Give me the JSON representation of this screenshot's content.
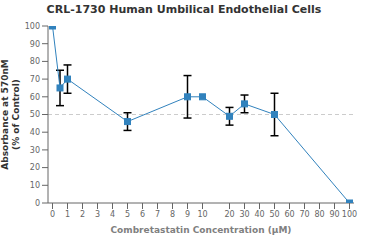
{
  "chart_data": {
    "type": "line",
    "title": "CRL-1730 Human Umbilical Endothelial Cells",
    "xlabel": "Combretastatin Concentration (μM)",
    "ylabel": "Absorbance at 570nM\n(% of Control)",
    "x": [
      0,
      0.5,
      1,
      5,
      9,
      10,
      20,
      30,
      50,
      100
    ],
    "values": [
      100,
      65,
      70,
      46,
      60,
      60,
      49,
      56,
      50,
      0
    ],
    "errors": [
      0,
      10,
      8,
      5,
      12,
      0,
      5,
      5,
      12,
      0
    ],
    "xlim": [
      -0.3,
      103
    ],
    "xticks": [
      0,
      1,
      2,
      3,
      4,
      5,
      6,
      7,
      8,
      9,
      10,
      20,
      30,
      40,
      50,
      60,
      70,
      80,
      90,
      100
    ],
    "ylim": [
      0,
      100
    ],
    "yticks": [
      0,
      10,
      20,
      30,
      40,
      50,
      60,
      70,
      80,
      90,
      100
    ],
    "marker": "square",
    "grid": false,
    "reference_line": {
      "y": 50,
      "line_style": "dashed"
    }
  }
}
